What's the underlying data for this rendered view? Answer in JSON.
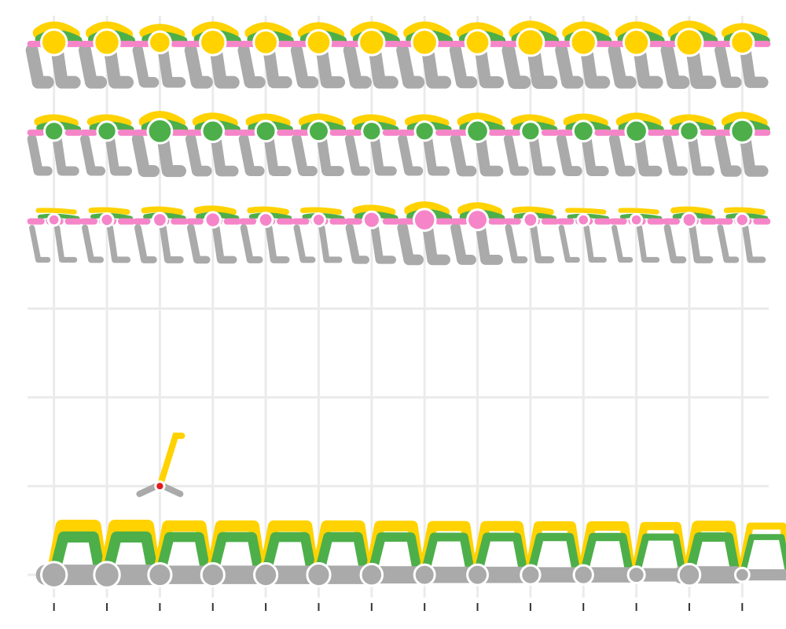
{
  "chart_data": {
    "type": "scatter",
    "title": "",
    "xlabel": "",
    "ylabel": "",
    "x": [
      1,
      2,
      3,
      4,
      5,
      6,
      7,
      8,
      9,
      10,
      11,
      12,
      13,
      14
    ],
    "xlim": [
      0.5,
      14.5
    ],
    "ylim": [
      -0.3,
      6.3
    ],
    "grid": true,
    "x_tick_labels": [
      "",
      "",
      "",
      "",
      "",
      "",
      "",
      "",
      "",
      "",
      "",
      "",
      "",
      ""
    ],
    "y_tick_labels": [
      "",
      "",
      "",
      "",
      "",
      "",
      ""
    ],
    "rows": [
      {
        "name": "row-0",
        "y": 0,
        "point_series": "gray",
        "point_sizes": [
          1.0,
          1.0,
          0.9,
          0.9,
          0.9,
          0.9,
          0.85,
          0.8,
          0.8,
          0.75,
          0.75,
          0.65,
          0.85,
          0.55
        ]
      },
      {
        "name": "row-4",
        "y": 4,
        "point_series": "pink",
        "point_sizes": [
          0.45,
          0.5,
          0.55,
          0.6,
          0.55,
          0.5,
          0.65,
          0.85,
          0.8,
          0.55,
          0.45,
          0.45,
          0.55,
          0.5
        ]
      },
      {
        "name": "row-5",
        "y": 5,
        "point_series": "green",
        "point_sizes": [
          0.75,
          0.75,
          0.95,
          0.85,
          0.8,
          0.8,
          0.75,
          0.75,
          0.85,
          0.75,
          0.8,
          0.85,
          0.75,
          0.9
        ]
      },
      {
        "name": "row-6",
        "y": 6,
        "point_series": "yellow",
        "point_sizes": [
          1.0,
          1.0,
          0.85,
          1.0,
          0.95,
          0.95,
          1.0,
          1.0,
          0.95,
          1.05,
          1.0,
          1.0,
          1.05,
          0.9
        ]
      }
    ],
    "extra_points": [
      {
        "x": 3,
        "y": 1,
        "series": "red",
        "size": 0.35
      }
    ],
    "series": [
      {
        "name": "gray",
        "color": "#AAAAAA"
      },
      {
        "name": "pink",
        "color": "#F585C8"
      },
      {
        "name": "green",
        "color": "#4DAF4A"
      },
      {
        "name": "yellow",
        "color": "#FFD200"
      },
      {
        "name": "red",
        "color": "#E41A1C"
      }
    ],
    "legend": "none"
  }
}
